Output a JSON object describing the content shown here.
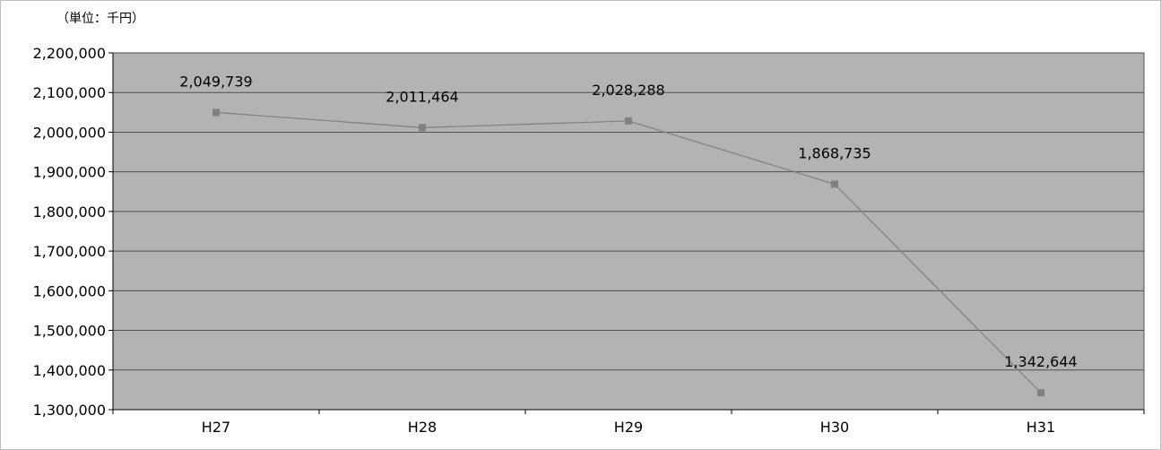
{
  "chart_data": {
    "type": "line",
    "title": "",
    "unit_note": "（単位：千円）",
    "xlabel": "",
    "ylabel": "",
    "categories": [
      "H27",
      "H28",
      "H29",
      "H30",
      "H31"
    ],
    "series": [
      {
        "values": [
          2049739,
          2011464,
          2028288,
          1868735,
          1342644
        ],
        "data_labels": [
          "2,049,739",
          "2,011,464",
          "2,028,288",
          "1,868,735",
          "1,342,644"
        ]
      }
    ],
    "ylim": [
      1300000,
      2200000
    ],
    "yticks": [
      1300000,
      1400000,
      1500000,
      1600000,
      1700000,
      1800000,
      1900000,
      2000000,
      2100000,
      2200000
    ],
    "ytick_labels": [
      "1,300,000",
      "1,400,000",
      "1,500,000",
      "1,600,000",
      "1,700,000",
      "1,800,000",
      "1,900,000",
      "2,000,000",
      "2,100,000",
      "2,200,000"
    ],
    "grid": true,
    "legend": "none",
    "colors": {
      "plot_background": "#b3b3b3",
      "gridline": "#505050",
      "line": "#808080",
      "marker": "#808080"
    }
  }
}
